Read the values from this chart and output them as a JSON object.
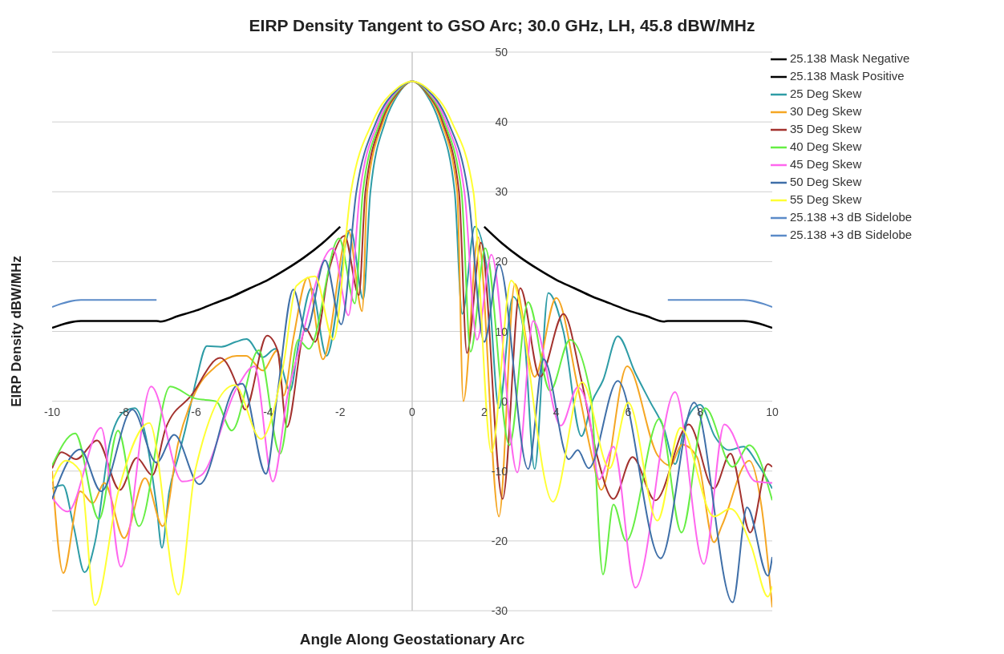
{
  "chart_data": {
    "type": "line",
    "title": "EIRP Density Tangent to GSO Arc; 30.0 GHz, LH, 45.8 dBW/MHz",
    "xlabel": "Angle Along Geostationary Arc",
    "ylabel": "EIRP Density dBW/MHz",
    "xlim": [
      -10,
      10
    ],
    "xticks": [
      -10,
      -8,
      -6,
      -4,
      -2,
      0,
      2,
      4,
      6,
      8,
      10
    ],
    "ylim": [
      -30,
      50
    ],
    "yticks": [
      -30,
      -20,
      -10,
      0,
      10,
      20,
      30,
      40,
      50
    ],
    "grid": "y",
    "legend": "top right",
    "marker": "none",
    "series": [
      {
        "name": "25.138 Mask Negative",
        "color": "#000000",
        "x": [
          -10,
          -9.2,
          -7.1,
          -7,
          -6.5,
          -6,
          -5.5,
          -5,
          -4.5,
          -4,
          -3.5,
          -3,
          -2.5,
          -2
        ],
        "values": [
          10.5,
          11.5,
          11.5,
          11.4,
          12.2,
          13.0,
          14.0,
          15.0,
          16.2,
          17.4,
          18.9,
          20.6,
          22.6,
          25.0
        ]
      },
      {
        "name": "25.138 Mask Positive",
        "color": "#000000",
        "x": [
          2,
          2.5,
          3,
          3.5,
          4,
          4.5,
          5,
          5.5,
          6,
          6.5,
          7,
          7.1,
          9.2,
          10
        ],
        "values": [
          25.0,
          22.6,
          20.6,
          18.9,
          17.4,
          16.2,
          15.0,
          14.0,
          13.0,
          12.2,
          11.4,
          11.5,
          11.5,
          10.5
        ]
      },
      {
        "name": "25 Deg Skew",
        "color": "#2e9ca6",
        "x": [
          -10,
          -9.7,
          -9.4,
          -9.1,
          -8.8,
          -8.4,
          -8.0,
          -7.7,
          -7.4,
          -7.1,
          -6.95,
          -6.75,
          -6.5,
          -6.3,
          -6.0,
          -5.7,
          -5.3,
          -4.9,
          -4.6,
          -4.15,
          -3.8,
          -3.39,
          -3.15,
          -2.8,
          -2.38,
          -1.71,
          -1.36,
          -1.16,
          -0.75,
          -0.4,
          0,
          0.4,
          0.75,
          1.18,
          1.39,
          1.74,
          2.1,
          2.41,
          2.8,
          3.1,
          3.4,
          3.78,
          4.2,
          4.7,
          5.0,
          5.3,
          5.71,
          6.2,
          6.6,
          7.0,
          7.3,
          7.6,
          8.0,
          8.4,
          8.8,
          9.2,
          9.6,
          10
        ],
        "values": [
          -12.5,
          -12,
          -18,
          -24.5,
          -20,
          -6,
          -1.5,
          -1,
          -5,
          -15,
          -21,
          -13,
          -8,
          -4,
          3,
          7.9,
          7.8,
          8.5,
          8.9,
          6.3,
          7.5,
          1.5,
          8.5,
          16.2,
          6.5,
          24.6,
          14.6,
          30,
          40,
          43.9,
          45.8,
          43.9,
          40,
          30,
          12.5,
          25,
          18,
          -1,
          15,
          10,
          -9.7,
          15.5,
          10,
          -5,
          0,
          3,
          9.3,
          4,
          0,
          -4,
          -9,
          -3,
          -0.5,
          -5,
          -7,
          -6.5,
          -9,
          -12.5
        ]
      },
      {
        "name": "30 Deg Skew",
        "color": "#f5a623",
        "x": [
          -10,
          -9.69,
          -9.22,
          -8.87,
          -8.55,
          -8.0,
          -7.42,
          -6.93,
          -6.5,
          -6.03,
          -5.45,
          -4.87,
          -4.61,
          -4.15,
          -3.74,
          -3.57,
          -3.3,
          -2.9,
          -2.48,
          -1.77,
          -1.39,
          -1.25,
          -0.81,
          -0.4,
          0,
          0.4,
          0.81,
          1.25,
          1.42,
          1.83,
          2.41,
          2.85,
          3.4,
          4.0,
          4.6,
          5.0,
          5.25,
          5.97,
          6.81,
          7.16,
          7.5,
          7.91,
          8.38,
          8.61,
          9.36,
          9.7,
          10
        ],
        "values": [
          -10,
          -24.6,
          -12.9,
          -14.6,
          -11.7,
          -19.6,
          -11,
          -17.9,
          -6,
          1.2,
          5,
          6.5,
          6.5,
          4.4,
          7.3,
          0.8,
          9,
          17.7,
          6,
          24.4,
          12.9,
          30,
          40,
          44.1,
          45.8,
          44.1,
          40,
          30,
          0,
          23.5,
          -16.5,
          16.8,
          3.5,
          14.8,
          2,
          -8,
          -12.7,
          5,
          -7.7,
          -9.2,
          -6.2,
          -8,
          -20.2,
          -17.7,
          -8.5,
          -15,
          -29.5
        ]
      },
      {
        "name": "35 Deg Skew",
        "color": "#a3322e",
        "x": [
          -10,
          -9.74,
          -9.33,
          -8.75,
          -8.12,
          -7.65,
          -7.22,
          -6.84,
          -6.14,
          -5.33,
          -4.87,
          -4.64,
          -4.03,
          -3.74,
          -3.48,
          -2.96,
          -2.7,
          -2.3,
          -1.88,
          -1.48,
          -1.3,
          -0.85,
          -0.4,
          0,
          0.4,
          0.85,
          1.3,
          1.52,
          1.91,
          2.51,
          3.0,
          3.55,
          4.2,
          4.7,
          5.13,
          5.59,
          6.12,
          6.75,
          7.68,
          8.38,
          8.84,
          9.39,
          9.88,
          10
        ],
        "values": [
          -9.6,
          -7.3,
          -8.3,
          -5.6,
          -12.7,
          -8.1,
          -10.6,
          -3.8,
          0.8,
          6.2,
          2.3,
          -1.2,
          9.4,
          7.3,
          -3.7,
          10.4,
          8.5,
          19,
          23.7,
          15.2,
          30,
          40,
          44.2,
          45.8,
          44.2,
          40,
          30,
          6.9,
          22.7,
          -14,
          16.2,
          3.5,
          12.5,
          3,
          -7.7,
          -14,
          -8,
          -14.2,
          -3.3,
          -12.5,
          -7.5,
          -18.8,
          -9,
          -9.4
        ]
      },
      {
        "name": "40 Deg Skew",
        "color": "#66ee44",
        "x": [
          -10,
          -9.36,
          -8.7,
          -8.17,
          -7.59,
          -6.72,
          -6.03,
          -5.45,
          -5.01,
          -4.26,
          -3.67,
          -3.16,
          -2.87,
          -2.03,
          -1.59,
          -1.37,
          -0.89,
          -0.4,
          0,
          0.4,
          0.89,
          1.37,
          1.62,
          2.03,
          2.7,
          3.22,
          3.83,
          4.38,
          4.96,
          5.3,
          5.59,
          5.94,
          6.87,
          7.48,
          8.14,
          8.9,
          9.36,
          10
        ],
        "values": [
          -9.2,
          -4.6,
          -16.9,
          -4.2,
          -17.9,
          2.1,
          0.4,
          0,
          -4.2,
          7.3,
          -7.5,
          8.8,
          7.5,
          23.3,
          14,
          30,
          40,
          44.4,
          45.8,
          44.4,
          40,
          30,
          7.1,
          21.9,
          -6.3,
          14.2,
          1.5,
          8.8,
          0.8,
          -24.8,
          -14.8,
          -20,
          -2.5,
          -18.8,
          -1,
          -9.4,
          -6.3,
          -14.2
        ]
      },
      {
        "name": "45 Deg Skew",
        "color": "#ff66ee",
        "x": [
          -10,
          -9.57,
          -8.64,
          -8.09,
          -7.25,
          -6.38,
          -5.86,
          -4.87,
          -4.38,
          -3.87,
          -3.45,
          -3.19,
          -2.2,
          -1.77,
          -1.45,
          -0.94,
          -0.4,
          0,
          0.4,
          0.94,
          1.45,
          1.8,
          2.2,
          2.92,
          3.36,
          4.13,
          4.6,
          4.9,
          5.19,
          5.59,
          6.2,
          7.3,
          8.1,
          8.67,
          9.54,
          10
        ],
        "values": [
          -13.8,
          -15.8,
          -3.8,
          -23.7,
          2.1,
          -11.5,
          -10.6,
          1.9,
          5,
          -11.5,
          1.2,
          6.5,
          21.9,
          12.3,
          30,
          40,
          44.6,
          45.8,
          44.6,
          40,
          30,
          8.8,
          21,
          -10.2,
          11.5,
          -3.5,
          2,
          -1.5,
          -11.2,
          -6.5,
          -26.7,
          1.3,
          -23.3,
          -3.3,
          -11.5,
          -11.7
        ]
      },
      {
        "name": "50 Deg Skew",
        "color": "#3f6fa8",
        "x": [
          -10,
          -9.22,
          -8.64,
          -7.77,
          -7.1,
          -6.61,
          -5.91,
          -4.87,
          -4.72,
          -4.06,
          -3.74,
          -3.3,
          -2.95,
          -2.42,
          -1.97,
          -1.55,
          -1.0,
          -0.4,
          0,
          0.4,
          1.0,
          1.55,
          2.0,
          2.41,
          3.22,
          3.65,
          4.35,
          4.6,
          4.9,
          5.71,
          6.9,
          7.83,
          8.9,
          9.3,
          9.88,
          10
        ],
        "values": [
          -14,
          -6.9,
          -12.9,
          -1.2,
          -8.8,
          -4.8,
          -11.9,
          2.3,
          2.5,
          -10.4,
          1.2,
          16,
          10,
          20.2,
          11,
          30,
          40,
          44.7,
          45.8,
          44.7,
          40,
          30,
          8.5,
          19.6,
          -9.7,
          6,
          -8.3,
          -7,
          -9.6,
          2.9,
          -22.5,
          -0.2,
          -28.8,
          -15.2,
          -25,
          -22.3
        ]
      },
      {
        "name": "55 Deg Skew",
        "color": "#ffff33",
        "x": [
          -10,
          -9.62,
          -9.22,
          -8.81,
          -8.17,
          -7.3,
          -6.49,
          -6.03,
          -4.93,
          -4.2,
          -3.57,
          -3.22,
          -2.7,
          -2.19,
          -1.7,
          -1.1,
          -0.4,
          0,
          0.4,
          1.1,
          1.7,
          2.2,
          2.75,
          3.91,
          4.72,
          5.48,
          6.0,
          6.81,
          7.45,
          8.38,
          8.84,
          9.42,
          9.88,
          10
        ],
        "values": [
          -11.5,
          -8.5,
          -10,
          -29.2,
          -13.1,
          -3.1,
          -27.7,
          -10,
          2.3,
          -5.4,
          5.4,
          16.5,
          17.9,
          8.8,
          30,
          40,
          44.9,
          45.8,
          44.9,
          40,
          30,
          -7.3,
          17.3,
          -14.4,
          2.7,
          -9.6,
          -0.2,
          -17.1,
          -3.8,
          -16.5,
          -15.4,
          -20.8,
          -28,
          -26.5
        ]
      },
      {
        "name": "25.138 +3 dB Sidelobe",
        "color": "#5b8bc8",
        "x": [
          -10,
          -9.2,
          -7.1
        ],
        "values": [
          13.5,
          14.5,
          14.5
        ]
      },
      {
        "name": "25.138 +3 dB Sidelobe",
        "color": "#5b8bc8",
        "x": [
          7.1,
          9.2,
          10
        ],
        "values": [
          14.5,
          14.5,
          13.5
        ]
      }
    ]
  }
}
